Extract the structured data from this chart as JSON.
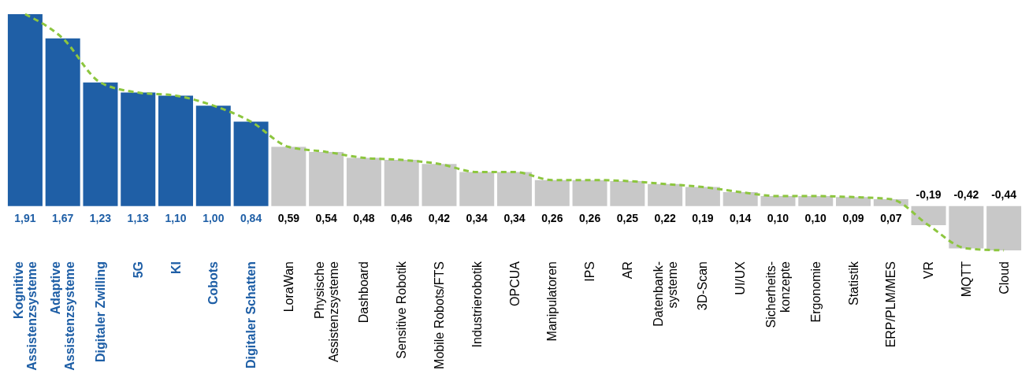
{
  "chart_data": {
    "type": "bar",
    "categories": [
      "Kognitive\nAssistenzsysteme",
      "Adaptive\nAssistenzsysteme",
      "Digitaler Zwilling",
      "5G",
      "KI",
      "Cobots",
      "Digitaler Schatten",
      "LoraWan",
      "Physische\nAssistenzsysteme",
      "Dashboard",
      "Sensitive Robotik",
      "Mobile Robots/FTS",
      "Industrierobotik",
      "OPCUA",
      "Manipulatoren",
      "IPS",
      "AR",
      "Datenbank-\nsysteme",
      "3D-Scan",
      "UI/UX",
      "Sicherheits-\nkonzepte",
      "Ergonomie",
      "Statistik",
      "ERP/PLM/MES",
      "VR",
      "MQTT",
      "Cloud"
    ],
    "series": [
      {
        "value_labels": [
          "1,91",
          "1,67",
          "1,23",
          "1,13",
          "1,10",
          "1,00",
          "0,84",
          "0,59",
          "0,54",
          "0,48",
          "0,46",
          "0,42",
          "0,34",
          "0,34",
          "0,26",
          "0,26",
          "0,25",
          "0,22",
          "0,19",
          "0,14",
          "0,10",
          "0,10",
          "0,09",
          "0,07",
          "-0,19",
          "-0,42",
          "-0,44"
        ],
        "colors": [
          "#1f5fa6",
          "#1f5fa6",
          "#1f5fa6",
          "#1f5fa6",
          "#1f5fa6",
          "#1f5fa6",
          "#1f5fa6",
          "#c8c8c8",
          "#c8c8c8",
          "#c8c8c8",
          "#c8c8c8",
          "#c8c8c8",
          "#c8c8c8",
          "#c8c8c8",
          "#c8c8c8",
          "#c8c8c8",
          "#c8c8c8",
          "#c8c8c8",
          "#c8c8c8",
          "#c8c8c8",
          "#c8c8c8",
          "#c8c8c8",
          "#c8c8c8",
          "#c8c8c8",
          "#c8c8c8",
          "#c8c8c8",
          "#c8c8c8"
        ],
        "values": [
          1.91,
          1.67,
          1.23,
          1.13,
          1.1,
          1.0,
          0.84,
          0.59,
          0.54,
          0.48,
          0.46,
          0.42,
          0.34,
          0.34,
          0.26,
          0.26,
          0.25,
          0.22,
          0.19,
          0.14,
          0.1,
          0.1,
          0.09,
          0.07,
          -0.19,
          -0.42,
          -0.44
        ]
      },
      {
        "type": "line",
        "color": "#8dc63f",
        "line_style": "dashed",
        "values": [
          1.91,
          1.67,
          1.23,
          1.13,
          1.1,
          1.0,
          0.84,
          0.59,
          0.54,
          0.48,
          0.46,
          0.42,
          0.34,
          0.34,
          0.26,
          0.26,
          0.25,
          0.22,
          0.19,
          0.14,
          0.1,
          0.1,
          0.09,
          0.07,
          -0.19,
          -0.42,
          -0.44
        ]
      }
    ],
    "grid": false,
    "legend": false,
    "tick_labels": "x"
  }
}
